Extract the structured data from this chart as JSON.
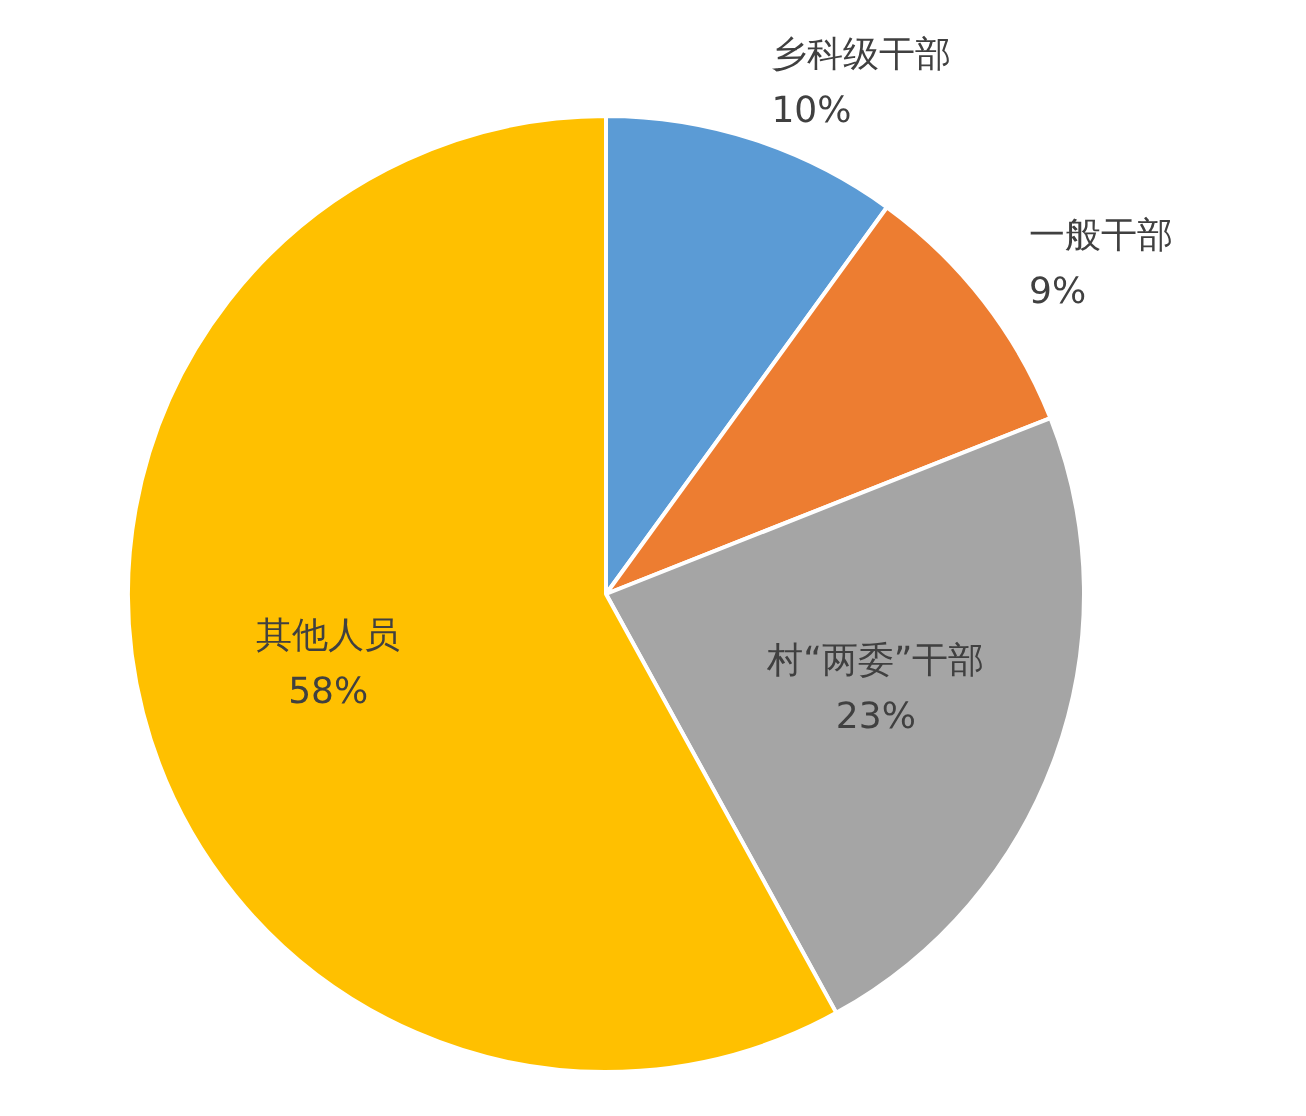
{
  "chart_data": {
    "type": "pie",
    "categories": [
      "乡科级干部",
      "一般干部",
      "村“两委”干部",
      "其他人员"
    ],
    "values": [
      10,
      9,
      23,
      58
    ],
    "colors": [
      "#5b9bd5",
      "#ed7d31",
      "#a5a5a5",
      "#ffc000"
    ],
    "value_labels": [
      "10%",
      "9%",
      "23%",
      "58%"
    ],
    "legend": false
  }
}
